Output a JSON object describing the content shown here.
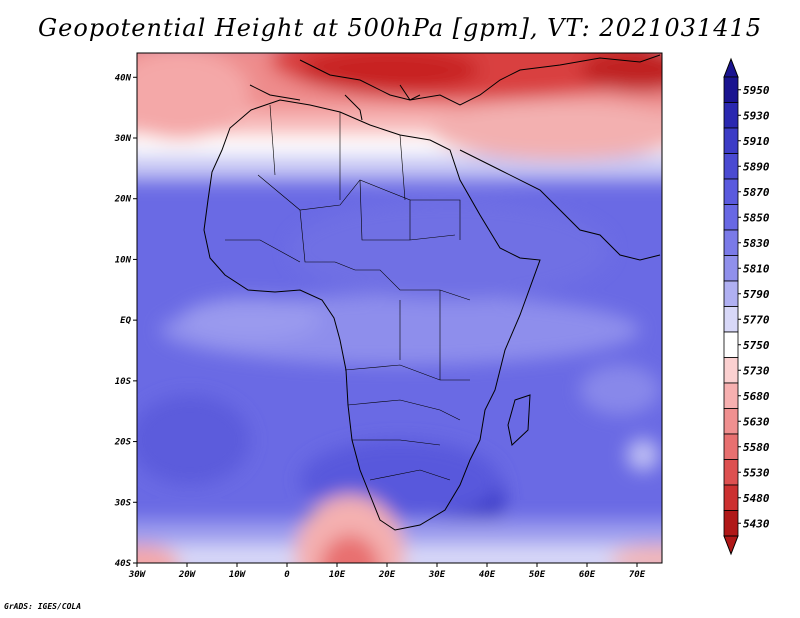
{
  "title": "Geopotential Height at 500hPa [gpm], VT: 2021031415",
  "credit": "GrADS: IGES/COLA",
  "map": {
    "lon_labels": [
      "30W",
      "20W",
      "10W",
      "0",
      "10E",
      "20E",
      "30E",
      "40E",
      "50E",
      "60E",
      "70E"
    ],
    "lat_labels": [
      "40N",
      "30N",
      "20N",
      "10N",
      "EQ",
      "10S",
      "20S",
      "30S",
      "40S"
    ],
    "lon_range": [
      -30,
      75
    ],
    "lat_range": [
      -40,
      44
    ]
  },
  "colorbar": {
    "levels": [
      "5950",
      "5930",
      "5910",
      "5890",
      "5870",
      "5850",
      "5830",
      "5810",
      "5790",
      "5770",
      "5750",
      "5730",
      "5680",
      "5630",
      "5580",
      "5530",
      "5480",
      "5430"
    ],
    "colors": [
      "#1a1490",
      "#2a28b0",
      "#3c3cc6",
      "#4a4ad2",
      "#5a5ade",
      "#6868e4",
      "#7a7ae8",
      "#9090ec",
      "#b0b0f2",
      "#d8d8f8",
      "#ffffff",
      "#fbd0d0",
      "#f7b0b0",
      "#f09090",
      "#e87070",
      "#dd5050",
      "#cc3030",
      "#b01818"
    ],
    "top_arrow_color": "#1a1490",
    "bottom_arrow_color": "#b01818"
  }
}
